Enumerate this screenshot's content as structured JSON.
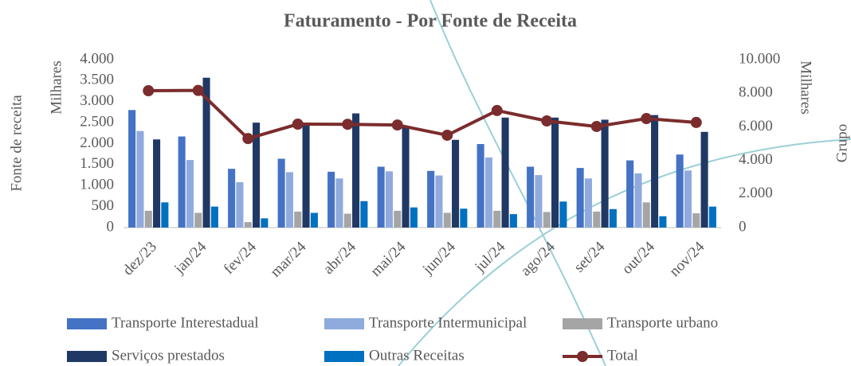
{
  "chart_data": {
    "type": "bar",
    "title": "Faturamento - Por Fonte de Receita",
    "y_label": "Fonte de receita",
    "y_unit": "Milhares",
    "y2_unit": "Milhares",
    "y2_label": "Grupo",
    "categories": [
      "dez/23",
      "jan/24",
      "fev/24",
      "mar/24",
      "abr/24",
      "mai/24",
      "jun/24",
      "jul/24",
      "ago/24",
      "set/24",
      "out/24",
      "nov/24"
    ],
    "ylim": [
      0,
      4000
    ],
    "yticks": [
      0,
      500,
      {
        "value": 1000,
        "label": "1.000"
      },
      {
        "value": 1500,
        "label": "1.500"
      },
      {
        "value": 2000,
        "label": "2.000"
      },
      {
        "value": 2500,
        "label": "2.500"
      },
      {
        "value": 3000,
        "label": "3.000"
      },
      {
        "value": 3500,
        "label": "3.500"
      },
      {
        "value": 4000,
        "label": "4.000"
      }
    ],
    "y2lim": [
      0,
      10000
    ],
    "y2ticks": [
      0,
      {
        "value": 2000,
        "label": "2.000"
      },
      {
        "value": 4000,
        "label": "4.000"
      },
      {
        "value": 6000,
        "label": "6.000"
      },
      {
        "value": 8000,
        "label": "8.000"
      },
      {
        "value": 10000,
        "label": "10.000"
      }
    ],
    "grid": false,
    "legend": "bottom",
    "series": [
      {
        "name": "Transporte Interestadual",
        "color": "#4472c4",
        "values": [
          2800,
          2170,
          1400,
          1640,
          1330,
          1450,
          1350,
          1990,
          1450,
          1420,
          1600,
          1740
        ]
      },
      {
        "name": "Transporte Intermunicipal",
        "color": "#8faadc",
        "values": [
          2300,
          1610,
          1080,
          1320,
          1170,
          1340,
          1240,
          1670,
          1250,
          1170,
          1290,
          1360
        ]
      },
      {
        "name": "Transporte urbano",
        "color": "#a5a5a5",
        "values": [
          400,
          350,
          130,
          380,
          330,
          400,
          350,
          400,
          370,
          380,
          600,
          340
        ]
      },
      {
        "name": "Serviços prestados",
        "color": "#203864",
        "values": [
          2100,
          3570,
          2500,
          2450,
          2720,
          2400,
          2090,
          2620,
          2620,
          2570,
          2680,
          2280
        ]
      },
      {
        "name": "Outras Receitas",
        "color": "#0070c0",
        "values": [
          600,
          500,
          220,
          350,
          630,
          480,
          450,
          320,
          620,
          440,
          270,
          500
        ]
      },
      {
        "name": "Total",
        "color": "#7b2c2c",
        "type": "line",
        "axis": "y2",
        "values": [
          8150,
          8170,
          5300,
          6160,
          6150,
          6110,
          5500,
          6970,
          6350,
          6020,
          6490,
          6260
        ]
      }
    ]
  }
}
